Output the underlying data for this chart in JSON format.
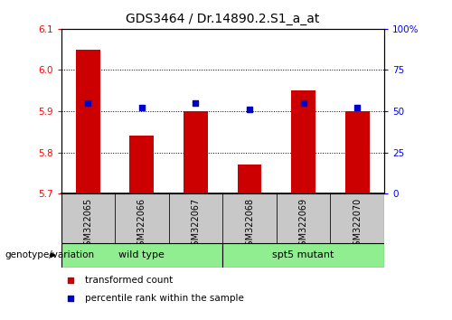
{
  "title": "GDS3464 / Dr.14890.2.S1_a_at",
  "samples": [
    "GSM322065",
    "GSM322066",
    "GSM322067",
    "GSM322068",
    "GSM322069",
    "GSM322070"
  ],
  "bar_values": [
    6.05,
    5.84,
    5.9,
    5.77,
    5.95,
    5.9
  ],
  "scatter_percentile": [
    55,
    52,
    55,
    51,
    55,
    52
  ],
  "ylim_left": [
    5.7,
    6.1
  ],
  "ylim_right": [
    0,
    100
  ],
  "yticks_left": [
    5.7,
    5.8,
    5.9,
    6.0,
    6.1
  ],
  "yticks_right": [
    0,
    25,
    50,
    75,
    100
  ],
  "ytick_labels_right": [
    "0",
    "25",
    "50",
    "75",
    "100%"
  ],
  "bar_color": "#cc0000",
  "scatter_color": "#0000cc",
  "bar_bottom": 5.7,
  "group_label": "genotype/variation",
  "wt_label": "wild type",
  "mut_label": "spt5 mutant",
  "group_color": "#90ee90",
  "xtick_bg": "#c8c8c8",
  "legend_bar_label": "transformed count",
  "legend_scatter_label": "percentile rank within the sample",
  "title_fontsize": 10,
  "tick_fontsize": 7.5,
  "sample_fontsize": 7,
  "group_fontsize": 8,
  "legend_fontsize": 7.5
}
